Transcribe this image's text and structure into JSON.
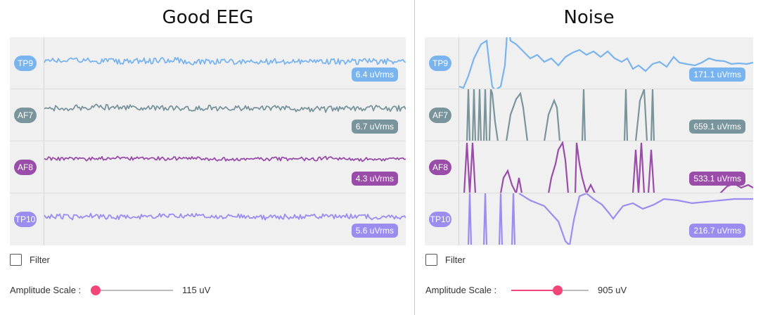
{
  "panels": [
    {
      "id": "good",
      "title": "Good EEG",
      "channels": [
        {
          "name": "TP9",
          "color": "#7ab4ee",
          "rms": "6.4 uVrms"
        },
        {
          "name": "AF7",
          "color": "#7a949c",
          "rms": "6.7 uVrms"
        },
        {
          "name": "AF8",
          "color": "#994da8",
          "rms": "4.3 uVrms"
        },
        {
          "name": "TP10",
          "color": "#9b8cf0",
          "rms": "5.6 uVrms"
        }
      ],
      "filter_label": "Filter",
      "filter_checked": false,
      "amplitude_label": "Amplitude Scale :",
      "amplitude_value": "115 uV",
      "slider_position": 0.0
    },
    {
      "id": "noise",
      "title": "Noise",
      "channels": [
        {
          "name": "TP9",
          "color": "#7ab4ee",
          "rms": "171.1 uVrms"
        },
        {
          "name": "AF7",
          "color": "#7a949c",
          "rms": "659.1 uVrms"
        },
        {
          "name": "AF8",
          "color": "#994da8",
          "rms": "533.1 uVrms"
        },
        {
          "name": "TP10",
          "color": "#9b8cf0",
          "rms": "216.7 uVrms"
        }
      ],
      "filter_label": "Filter",
      "filter_checked": false,
      "amplitude_label": "Amplitude Scale :",
      "amplitude_value": "905 uV",
      "slider_position": 0.6
    }
  ]
}
